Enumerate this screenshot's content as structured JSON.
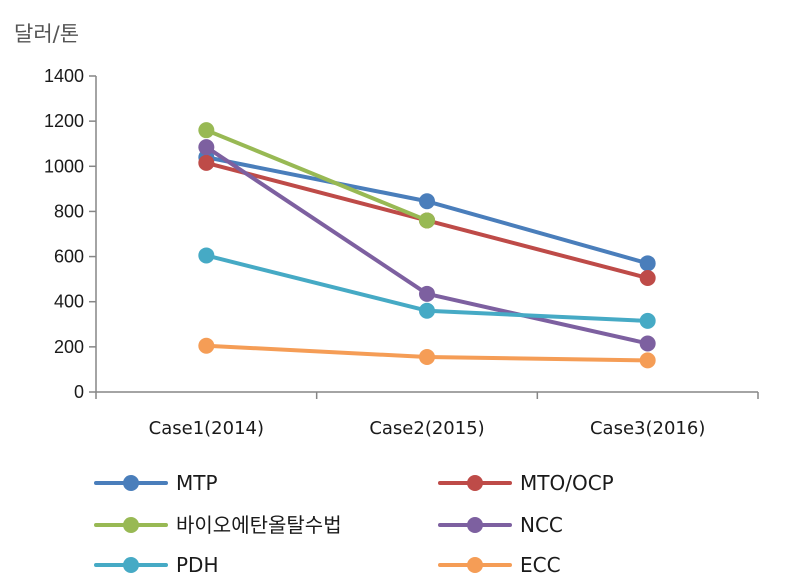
{
  "chart_data": {
    "type": "line",
    "title": "",
    "ylabel": "달러/톤",
    "xlabel": "",
    "categories": [
      "Case1(2014)",
      "Case2(2015)",
      "Case3(2016)"
    ],
    "ylim": [
      0,
      1400
    ],
    "yticks": [
      0,
      200,
      400,
      600,
      800,
      1000,
      1200,
      1400
    ],
    "grid": false,
    "legend_position": "bottom",
    "series": [
      {
        "name": "MTP",
        "color": "#4a7ebb",
        "values": [
          1040,
          845,
          570
        ]
      },
      {
        "name": "MTO/OCP",
        "color": "#be4b48",
        "values": [
          1015,
          760,
          505
        ]
      },
      {
        "name": "바이오에탄올탈수법",
        "color": "#98b954",
        "values": [
          1160,
          760,
          null
        ]
      },
      {
        "name": "NCC",
        "color": "#7d60a0",
        "values": [
          1085,
          435,
          215
        ]
      },
      {
        "name": "PDH",
        "color": "#46aac5",
        "values": [
          605,
          360,
          315
        ]
      },
      {
        "name": "ECC",
        "color": "#f59d56",
        "values": [
          205,
          155,
          140
        ]
      }
    ]
  }
}
